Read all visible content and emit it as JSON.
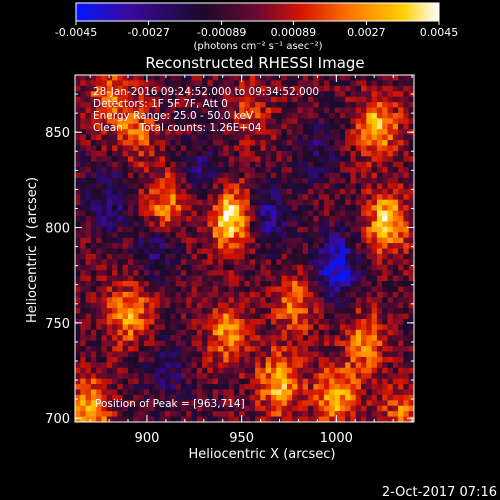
{
  "chart_data": {
    "type": "heatmap",
    "title": "Reconstructed RHESSI Image",
    "xlabel": "Heliocentric X (arcsec)",
    "ylabel": "Heliocentric Y (arcsec)",
    "xlim": [
      862,
      1041
    ],
    "ylim": [
      698,
      880
    ],
    "x_ticks": [
      "900",
      "950",
      "1000"
    ],
    "y_ticks": [
      "700",
      "750",
      "800",
      "850"
    ],
    "colorbar": {
      "min": -0.0045,
      "max": 0.0045,
      "ticks": [
        "-0.0045",
        "-0.0027",
        "-0.00089",
        "0.00089",
        "0.0027",
        "0.0045"
      ],
      "units": "(photons cm⁻² s⁻¹ asec⁻²)",
      "colormap": [
        "#0018ff",
        "#3a0aa0",
        "#1a0a2a",
        "#6a0a30",
        "#d41400",
        "#ff7800",
        "#ffd000",
        "#ffffff"
      ]
    },
    "annotations": [
      "28-Jan-2016 09:24:52.000 to 09:34:52.000",
      "Detectors: 1F 5F 7F, Att 0",
      "Energy Range: 25.0 - 50.0 keV",
      "Clean     Total counts: 1.26E+04"
    ],
    "peak_label": "Position of Peak = [963,714]",
    "peak_position": [
      963,
      714
    ],
    "blobs": [
      {
        "x": 944,
        "y": 805,
        "amplitude": 1.0
      },
      {
        "x": 1027,
        "y": 803,
        "amplitude": 0.9
      },
      {
        "x": 1022,
        "y": 853,
        "amplitude": 0.8
      },
      {
        "x": 910,
        "y": 812,
        "amplitude": 0.7
      },
      {
        "x": 894,
        "y": 850,
        "amplitude": 0.55
      },
      {
        "x": 890,
        "y": 755,
        "amplitude": 0.7
      },
      {
        "x": 943,
        "y": 745,
        "amplitude": 0.7
      },
      {
        "x": 978,
        "y": 760,
        "amplitude": 0.6
      },
      {
        "x": 870,
        "y": 705,
        "amplitude": 0.8
      },
      {
        "x": 970,
        "y": 718,
        "amplitude": 0.85
      },
      {
        "x": 1000,
        "y": 712,
        "amplitude": 0.8
      },
      {
        "x": 1015,
        "y": 740,
        "amplitude": 0.6
      },
      {
        "x": 955,
        "y": 860,
        "amplitude": 0.4
      },
      {
        "x": 880,
        "y": 870,
        "amplitude": 0.55
      },
      {
        "x": 1035,
        "y": 700,
        "amplitude": 0.6
      },
      {
        "x": 1000,
        "y": 780,
        "amplitude": -0.85
      },
      {
        "x": 965,
        "y": 805,
        "amplitude": -0.55
      },
      {
        "x": 905,
        "y": 790,
        "amplitude": -0.45
      },
      {
        "x": 880,
        "y": 815,
        "amplitude": -0.5
      },
      {
        "x": 930,
        "y": 830,
        "amplitude": -0.4
      },
      {
        "x": 990,
        "y": 840,
        "amplitude": -0.35
      },
      {
        "x": 910,
        "y": 725,
        "amplitude": -0.35
      }
    ],
    "grid": false,
    "legend": "none"
  },
  "timestamp": "2-Oct-2017 07:16"
}
